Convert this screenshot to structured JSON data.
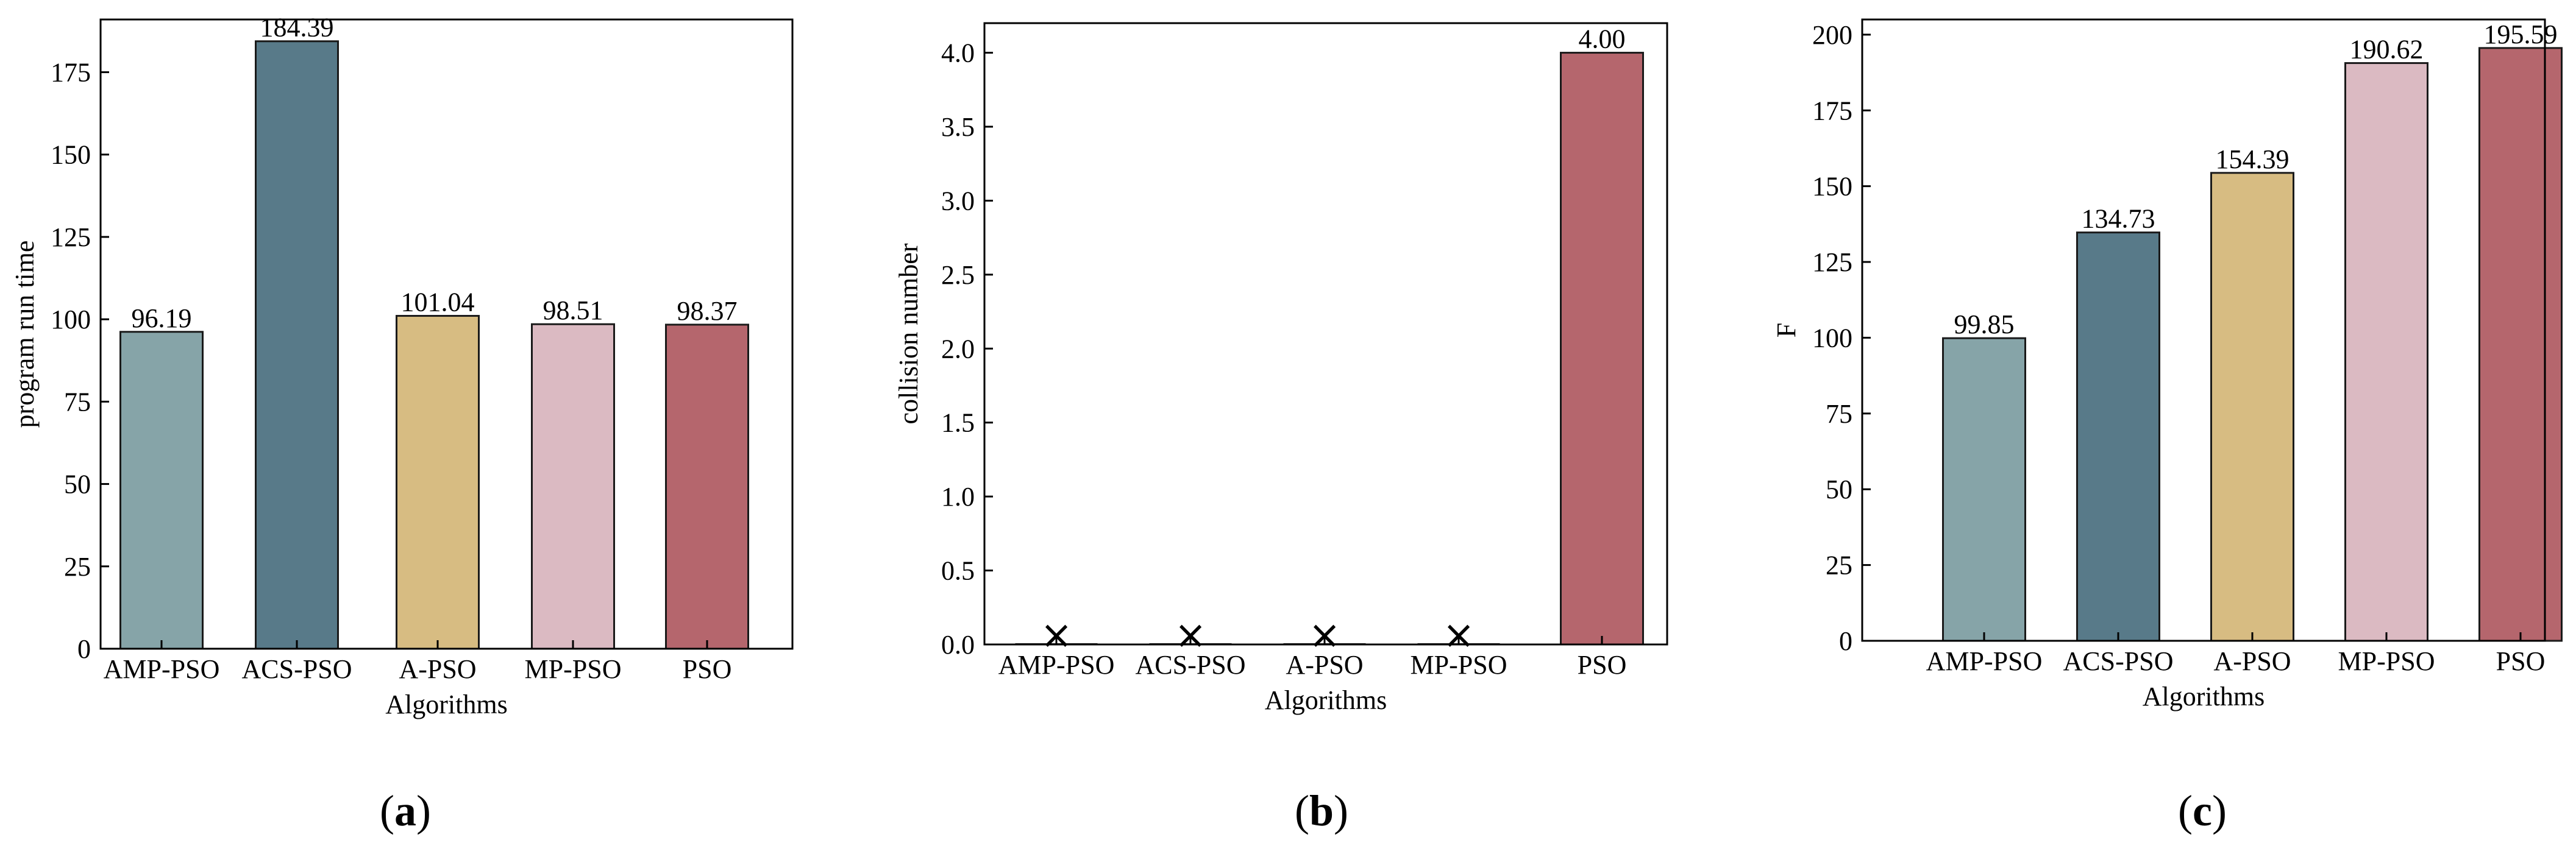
{
  "colors": {
    "AMP-PSO": "#86a4a8",
    "ACS-PSO": "#587a89",
    "A-PSO": "#d7bc82",
    "MP-PSO": "#dbbac2",
    "PSO": "#b5666d",
    "axis": "#000000",
    "bar_edge": "#1a1a1a",
    "marker": "#000000"
  },
  "chart_data": [
    {
      "type": "bar",
      "panel_label": {
        "open": "(",
        "letter": "a",
        "close": ")"
      },
      "categories": [
        "AMP-PSO",
        "ACS-PSO",
        "A-PSO",
        "MP-PSO",
        "PSO"
      ],
      "values": [
        96.19,
        184.39,
        101.04,
        98.51,
        98.37
      ],
      "value_labels": [
        "96.19",
        "184.39",
        "101.04",
        "98.51",
        "98.37"
      ],
      "xlabel": "Algorithms",
      "ylabel": "program run time",
      "ylim": [
        0,
        191
      ],
      "yticks": [
        0,
        25,
        50,
        75,
        100,
        125,
        150,
        175
      ],
      "ytick_labels": [
        "0",
        "25",
        "50",
        "75",
        "100",
        "125",
        "150",
        "175"
      ],
      "grid": false,
      "tick_direction": "in"
    },
    {
      "type": "bar",
      "panel_label": {
        "open": "(",
        "letter": "b",
        "close": ")"
      },
      "categories": [
        "AMP-PSO",
        "ACS-PSO",
        "A-PSO",
        "MP-PSO",
        "PSO"
      ],
      "values": [
        0,
        0,
        0,
        0,
        4.0
      ],
      "value_labels": [
        "",
        "",
        "",
        "",
        "4.00"
      ],
      "zero_markers": [
        true,
        true,
        true,
        true,
        false
      ],
      "marker_symbol": "×",
      "xlabel": "Algorithms",
      "ylabel": "collision number",
      "ylim": [
        0,
        4.2
      ],
      "yticks": [
        0,
        0.5,
        1.0,
        1.5,
        2.0,
        2.5,
        3.0,
        3.5,
        4.0
      ],
      "ytick_labels": [
        "0.0",
        "0.5",
        "1.0",
        "1.5",
        "2.0",
        "2.5",
        "3.0",
        "3.5",
        "4.0"
      ],
      "grid": false,
      "tick_direction": "in"
    },
    {
      "type": "bar",
      "panel_label": {
        "open": "(",
        "letter": "c",
        "close": ")"
      },
      "categories": [
        "AMP-PSO",
        "ACS-PSO",
        "A-PSO",
        "MP-PSO",
        "PSO"
      ],
      "values": [
        99.85,
        134.73,
        154.39,
        190.62,
        195.59
      ],
      "value_labels": [
        "99.85",
        "134.73",
        "154.39",
        "190.62",
        "195.59"
      ],
      "xlabel": "Algorithms",
      "ylabel": "F",
      "ylim": [
        0,
        205
      ],
      "yticks": [
        0,
        25,
        50,
        75,
        100,
        125,
        150,
        175,
        200
      ],
      "ytick_labels": [
        "0",
        "25",
        "50",
        "75",
        "100",
        "125",
        "150",
        "175",
        "200"
      ],
      "grid": false,
      "tick_direction": "in"
    }
  ]
}
